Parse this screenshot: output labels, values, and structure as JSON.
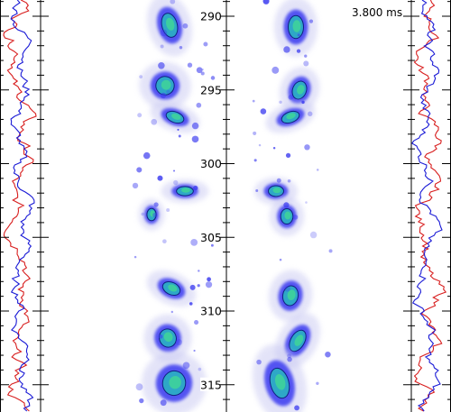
{
  "time_readout": "3.800 ms",
  "axis": {
    "ticks": [
      "290",
      "295",
      "300",
      "305",
      "310",
      "315"
    ],
    "min": 287.5,
    "max": 319.5
  },
  "colors": {
    "profile_a": "#d81e1e",
    "profile_b": "#1a1ad6",
    "blob_outer": "#c9c9f2",
    "blob_mid": "#3b3bf0",
    "blob_inner": "#2ea7c7",
    "blob_core": "#3fd39a"
  }
}
